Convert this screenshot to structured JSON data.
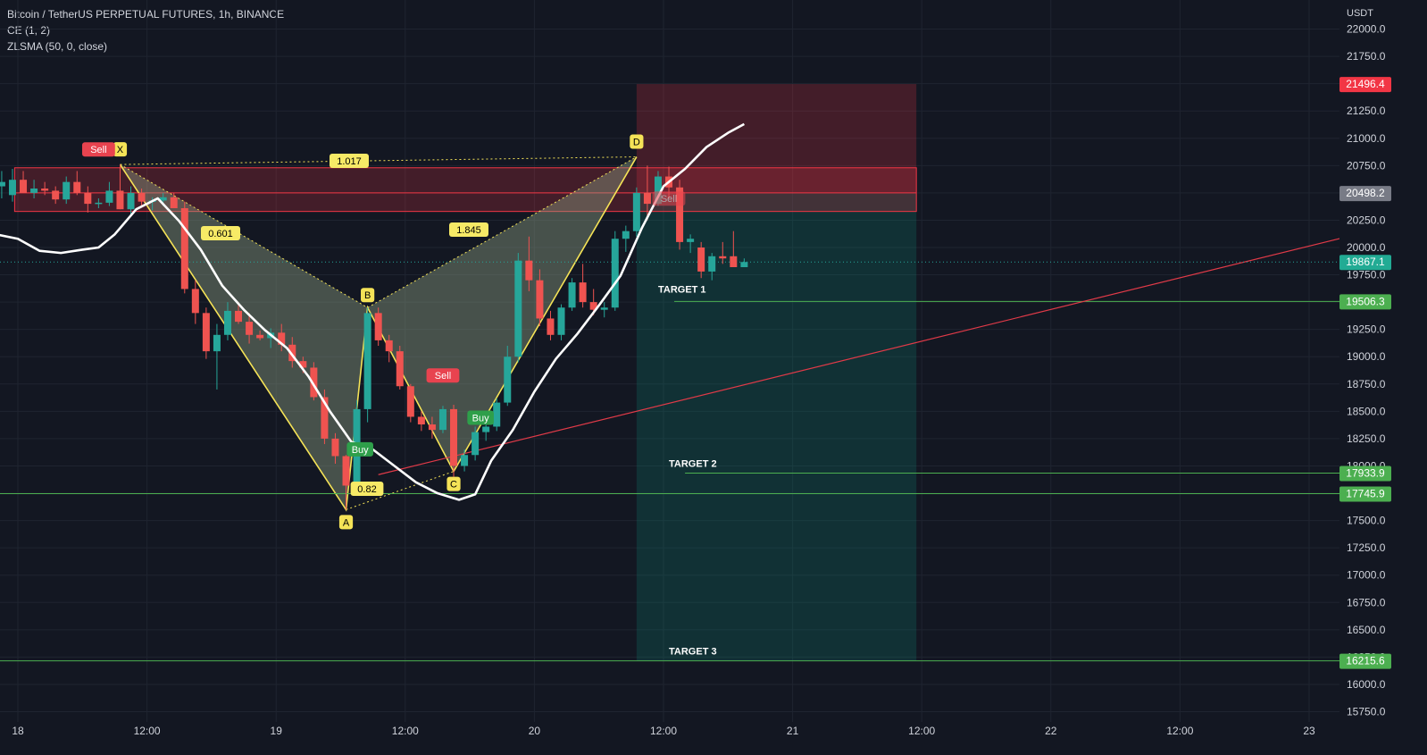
{
  "header": {
    "title": "Bitcoin / TetherUS PERPETUAL FUTURES, 1h, BINANCE",
    "indicator_1": "CE (1, 2)",
    "indicator_2": "ZLSMA (50, 0, close)"
  },
  "chart_data": {
    "type": "candlestick",
    "currency": "USDT",
    "y_range": [
      15600,
      22200
    ],
    "y_ticks": [
      22000,
      21750,
      21500,
      21250,
      21000,
      20750,
      20500,
      20250,
      20000,
      19750,
      19500,
      19250,
      19000,
      18750,
      18500,
      18250,
      18000,
      17750,
      17500,
      17250,
      17000,
      16750,
      16500,
      16250,
      16000,
      15750
    ],
    "x_ticks": [
      {
        "label": "18",
        "t": 0
      },
      {
        "label": "12:00",
        "t": 12
      },
      {
        "label": "19",
        "t": 24
      },
      {
        "label": "12:00",
        "t": 36
      },
      {
        "label": "20",
        "t": 48
      },
      {
        "label": "12:00",
        "t": 60
      },
      {
        "label": "21",
        "t": 72
      },
      {
        "label": "12:00",
        "t": 84
      },
      {
        "label": "22",
        "t": 96
      },
      {
        "label": "12:00",
        "t": 108
      },
      {
        "label": "23",
        "t": 120
      }
    ],
    "candles": [
      {
        "t": -1.5,
        "o": 20560,
        "h": 20700,
        "l": 20450,
        "c": 20600
      },
      {
        "t": -0.5,
        "o": 20480,
        "h": 20720,
        "l": 20420,
        "c": 20620
      },
      {
        "t": 0.5,
        "o": 20620,
        "h": 20700,
        "l": 20500,
        "c": 20500
      },
      {
        "t": 1.5,
        "o": 20500,
        "h": 20620,
        "l": 20450,
        "c": 20540
      },
      {
        "t": 2.5,
        "o": 20540,
        "h": 20600,
        "l": 20480,
        "c": 20520
      },
      {
        "t": 3.5,
        "o": 20520,
        "h": 20560,
        "l": 20400,
        "c": 20440
      },
      {
        "t": 4.5,
        "o": 20440,
        "h": 20650,
        "l": 20400,
        "c": 20600
      },
      {
        "t": 5.5,
        "o": 20600,
        "h": 20700,
        "l": 20480,
        "c": 20500
      },
      {
        "t": 6.5,
        "o": 20500,
        "h": 20560,
        "l": 20320,
        "c": 20400
      },
      {
        "t": 7.5,
        "o": 20400,
        "h": 20450,
        "l": 20360,
        "c": 20410
      },
      {
        "t": 8.5,
        "o": 20410,
        "h": 20600,
        "l": 20380,
        "c": 20520
      },
      {
        "t": 9.5,
        "o": 20520,
        "h": 20760,
        "l": 20350,
        "c": 20350
      },
      {
        "t": 10.5,
        "o": 20350,
        "h": 20560,
        "l": 20300,
        "c": 20500
      },
      {
        "t": 11.5,
        "o": 20500,
        "h": 20540,
        "l": 20380,
        "c": 20420
      },
      {
        "t": 12.5,
        "o": 20420,
        "h": 20460,
        "l": 20340,
        "c": 20430
      },
      {
        "t": 13.5,
        "o": 20430,
        "h": 20500,
        "l": 20380,
        "c": 20460
      },
      {
        "t": 14.5,
        "o": 20460,
        "h": 20500,
        "l": 20400,
        "c": 20360
      },
      {
        "t": 15.5,
        "o": 20360,
        "h": 20420,
        "l": 19580,
        "c": 19620
      },
      {
        "t": 16.5,
        "o": 19620,
        "h": 19700,
        "l": 19300,
        "c": 19400
      },
      {
        "t": 17.5,
        "o": 19400,
        "h": 19450,
        "l": 18980,
        "c": 19050
      },
      {
        "t": 18.5,
        "o": 19050,
        "h": 19300,
        "l": 18700,
        "c": 19200
      },
      {
        "t": 19.5,
        "o": 19200,
        "h": 19500,
        "l": 19150,
        "c": 19420
      },
      {
        "t": 20.5,
        "o": 19420,
        "h": 19500,
        "l": 19300,
        "c": 19320
      },
      {
        "t": 21.5,
        "o": 19320,
        "h": 19400,
        "l": 19120,
        "c": 19200
      },
      {
        "t": 22.5,
        "o": 19200,
        "h": 19240,
        "l": 19150,
        "c": 19170
      },
      {
        "t": 23.5,
        "o": 19170,
        "h": 19260,
        "l": 19080,
        "c": 19220
      },
      {
        "t": 24.5,
        "o": 19220,
        "h": 19300,
        "l": 19050,
        "c": 19110
      },
      {
        "t": 25.5,
        "o": 19110,
        "h": 19180,
        "l": 18900,
        "c": 18960
      },
      {
        "t": 26.5,
        "o": 18960,
        "h": 19000,
        "l": 18850,
        "c": 18900
      },
      {
        "t": 27.5,
        "o": 18900,
        "h": 18950,
        "l": 18600,
        "c": 18630
      },
      {
        "t": 28.5,
        "o": 18630,
        "h": 18700,
        "l": 18200,
        "c": 18250
      },
      {
        "t": 29.5,
        "o": 18250,
        "h": 18300,
        "l": 18020,
        "c": 18090
      },
      {
        "t": 30.5,
        "o": 18090,
        "h": 18100,
        "l": 17600,
        "c": 17820
      },
      {
        "t": 31.5,
        "o": 17820,
        "h": 18600,
        "l": 17800,
        "c": 18520
      },
      {
        "t": 32.5,
        "o": 18520,
        "h": 19450,
        "l": 18400,
        "c": 19400
      },
      {
        "t": 33.5,
        "o": 19400,
        "h": 19450,
        "l": 19100,
        "c": 19150
      },
      {
        "t": 34.5,
        "o": 19150,
        "h": 19200,
        "l": 18950,
        "c": 19050
      },
      {
        "t": 35.5,
        "o": 19050,
        "h": 19100,
        "l": 18700,
        "c": 18730
      },
      {
        "t": 36.5,
        "o": 18730,
        "h": 18750,
        "l": 18400,
        "c": 18450
      },
      {
        "t": 37.5,
        "o": 18450,
        "h": 18500,
        "l": 18320,
        "c": 18380
      },
      {
        "t": 38.5,
        "o": 18380,
        "h": 18450,
        "l": 18250,
        "c": 18330
      },
      {
        "t": 39.5,
        "o": 18330,
        "h": 18550,
        "l": 18300,
        "c": 18520
      },
      {
        "t": 40.5,
        "o": 18520,
        "h": 18560,
        "l": 17900,
        "c": 18000
      },
      {
        "t": 41.5,
        "o": 18000,
        "h": 18150,
        "l": 17950,
        "c": 18100
      },
      {
        "t": 42.5,
        "o": 18100,
        "h": 18360,
        "l": 18050,
        "c": 18310
      },
      {
        "t": 43.5,
        "o": 18310,
        "h": 18400,
        "l": 18230,
        "c": 18360
      },
      {
        "t": 44.5,
        "o": 18360,
        "h": 18620,
        "l": 18320,
        "c": 18580
      },
      {
        "t": 45.5,
        "o": 18580,
        "h": 19100,
        "l": 18550,
        "c": 19000
      },
      {
        "t": 46.5,
        "o": 19000,
        "h": 19950,
        "l": 18950,
        "c": 19880
      },
      {
        "t": 47.5,
        "o": 19880,
        "h": 20100,
        "l": 19600,
        "c": 19700
      },
      {
        "t": 48.5,
        "o": 19700,
        "h": 19800,
        "l": 19280,
        "c": 19350
      },
      {
        "t": 49.5,
        "o": 19350,
        "h": 19420,
        "l": 19150,
        "c": 19200
      },
      {
        "t": 50.5,
        "o": 19200,
        "h": 19480,
        "l": 19150,
        "c": 19450
      },
      {
        "t": 51.5,
        "o": 19450,
        "h": 19720,
        "l": 19420,
        "c": 19680
      },
      {
        "t": 52.5,
        "o": 19680,
        "h": 19850,
        "l": 19450,
        "c": 19500
      },
      {
        "t": 53.5,
        "o": 19500,
        "h": 19620,
        "l": 19380,
        "c": 19430
      },
      {
        "t": 54.5,
        "o": 19430,
        "h": 19500,
        "l": 19360,
        "c": 19450
      },
      {
        "t": 55.5,
        "o": 19450,
        "h": 20150,
        "l": 19420,
        "c": 20080
      },
      {
        "t": 56.5,
        "o": 20080,
        "h": 20200,
        "l": 19960,
        "c": 20150
      },
      {
        "t": 57.5,
        "o": 20150,
        "h": 20550,
        "l": 20100,
        "c": 20500
      },
      {
        "t": 58.5,
        "o": 20500,
        "h": 20750,
        "l": 20250,
        "c": 20400
      },
      {
        "t": 59.5,
        "o": 20400,
        "h": 20700,
        "l": 20380,
        "c": 20650
      },
      {
        "t": 60.5,
        "o": 20650,
        "h": 20740,
        "l": 20450,
        "c": 20550
      },
      {
        "t": 61.5,
        "o": 20550,
        "h": 20620,
        "l": 19980,
        "c": 20050
      },
      {
        "t": 62.5,
        "o": 20050,
        "h": 20120,
        "l": 19950,
        "c": 20080
      },
      {
        "t": 63.5,
        "o": 20000,
        "h": 20050,
        "l": 19720,
        "c": 19780
      },
      {
        "t": 64.5,
        "o": 19780,
        "h": 19950,
        "l": 19700,
        "c": 19920
      },
      {
        "t": 65.5,
        "o": 19920,
        "h": 20050,
        "l": 19850,
        "c": 19900
      },
      {
        "t": 66.5,
        "o": 19920,
        "h": 20150,
        "l": 19880,
        "c": 19820
      },
      {
        "t": 67.5,
        "o": 19820,
        "h": 19900,
        "l": 19820,
        "c": 19867
      }
    ],
    "zlsma_points": [
      [
        -2,
        20120
      ],
      [
        0,
        20080
      ],
      [
        2,
        19970
      ],
      [
        4,
        19950
      ],
      [
        6,
        19980
      ],
      [
        7.5,
        20000
      ],
      [
        9,
        20120
      ],
      [
        11,
        20350
      ],
      [
        13,
        20450
      ],
      [
        15,
        20240
      ],
      [
        17,
        19980
      ],
      [
        19,
        19650
      ],
      [
        21,
        19430
      ],
      [
        23,
        19240
      ],
      [
        25,
        19080
      ],
      [
        27,
        18820
      ],
      [
        29,
        18500
      ],
      [
        31,
        18220
      ],
      [
        33,
        18150
      ],
      [
        35,
        18000
      ],
      [
        37,
        17850
      ],
      [
        39,
        17750
      ],
      [
        41,
        17690
      ],
      [
        42.5,
        17740
      ],
      [
        44,
        18050
      ],
      [
        46,
        18330
      ],
      [
        48,
        18680
      ],
      [
        50,
        18980
      ],
      [
        52,
        19210
      ],
      [
        54,
        19470
      ],
      [
        56,
        19740
      ],
      [
        58,
        20180
      ],
      [
        60,
        20560
      ],
      [
        62,
        20720
      ],
      [
        64,
        20920
      ],
      [
        66,
        21050
      ],
      [
        67.5,
        21130
      ]
    ],
    "harmonic_pattern": {
      "points": [
        {
          "label": "X",
          "t": 9.5,
          "p": 20760
        },
        {
          "label": "A",
          "t": 30.5,
          "p": 17600
        },
        {
          "label": "B",
          "t": 32.5,
          "p": 19450
        },
        {
          "label": "C",
          "t": 40.5,
          "p": 17950
        },
        {
          "label": "D",
          "t": 57.5,
          "p": 20830
        }
      ],
      "ratios": [
        "0.601",
        "1.017",
        "0.82",
        "1.845"
      ]
    },
    "signals": [
      {
        "label": "Sell",
        "type": "sell",
        "t": 7.5,
        "p": 20800
      },
      {
        "label": "Buy",
        "type": "buy",
        "t": 31.8,
        "p": 18250
      },
      {
        "label": "Sell",
        "type": "sell",
        "t": 39.5,
        "p": 18730
      },
      {
        "label": "Buy",
        "type": "buy",
        "t": 43.0,
        "p": 18540
      },
      {
        "label": "Sell",
        "type": "sell",
        "t": 60.5,
        "p": 20350
      }
    ],
    "sell_zone": {
      "top": 20730,
      "bottom": 20330,
      "mid": 20500
    },
    "position": {
      "entry": 20498.2,
      "stop": 21496.4,
      "target": 16215.6,
      "t_start": 57.5,
      "t_end": 83.5
    },
    "targets": [
      {
        "label": "TARGET 1",
        "value": 19506.3
      },
      {
        "label": "TARGET 2",
        "value": 17933.9
      },
      {
        "label": "TARGET 3",
        "value": 16215.6
      }
    ],
    "support_line": 17745.9,
    "trendline": {
      "t1": 33.5,
      "p1": 17920,
      "t2": 124,
      "p2": 20110
    },
    "price_labels": [
      {
        "value": 21496.4,
        "text": "21496.4",
        "color": "#f23645"
      },
      {
        "value": 20498.2,
        "text": "20498.2",
        "color": "#787b86"
      },
      {
        "value": 19867.1,
        "text": "19867.1",
        "color": "#22ab94"
      },
      {
        "value": 19506.3,
        "text": "19506.3",
        "color": "#4caf50"
      },
      {
        "value": 17933.9,
        "text": "17933.9",
        "color": "#4caf50"
      },
      {
        "value": 17745.9,
        "text": "17745.9",
        "color": "#4caf50"
      },
      {
        "value": 16215.6,
        "text": "16215.6",
        "color": "#4caf50"
      }
    ],
    "last_price": 19867.1
  },
  "colors": {
    "background": "#131722",
    "grid": "#1f2430",
    "up": "#26a69a",
    "down": "#ef5350",
    "pattern_line": "#f5e357",
    "pattern_fill": "#8fa186",
    "zlsma": "#ffffff",
    "target_line": "#4caf50",
    "trendline": "#e03a48",
    "text": "#d1d4dc"
  }
}
